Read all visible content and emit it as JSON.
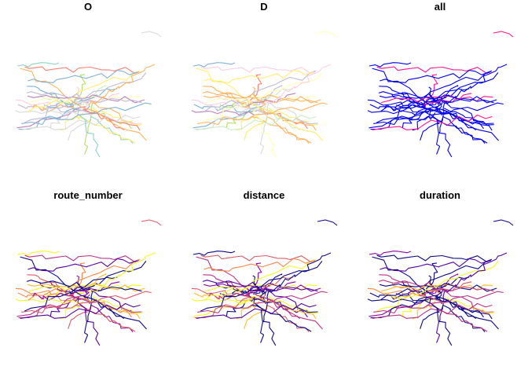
{
  "chart_data": [
    {
      "type": "map",
      "title": "O",
      "palette": "categorical"
    },
    {
      "type": "map",
      "title": "D",
      "palette": "categorical"
    },
    {
      "type": "map",
      "title": "all",
      "palette": "blue"
    },
    {
      "type": "map",
      "title": "route_number",
      "palette": "plasma"
    },
    {
      "type": "map",
      "title": "distance",
      "palette": "plasma"
    },
    {
      "type": "map",
      "title": "duration",
      "palette": "plasma"
    }
  ],
  "colors": {
    "categorical": [
      "#8DD3C7",
      "#FFFFB3",
      "#BEBADA",
      "#FB8072",
      "#80B1D3",
      "#FDB462",
      "#B3DE69",
      "#FCCDE5",
      "#D9D9D9",
      "#BC80BD",
      "#CCEBC5",
      "#FFED6F"
    ],
    "plasma": [
      "#0D0887",
      "#5402A3",
      "#8B0AA5",
      "#B93289",
      "#DB5C68",
      "#F48849",
      "#FEBC2A",
      "#F0F921"
    ],
    "blue": "#0000EE",
    "all_highlight": "#FF1493"
  }
}
